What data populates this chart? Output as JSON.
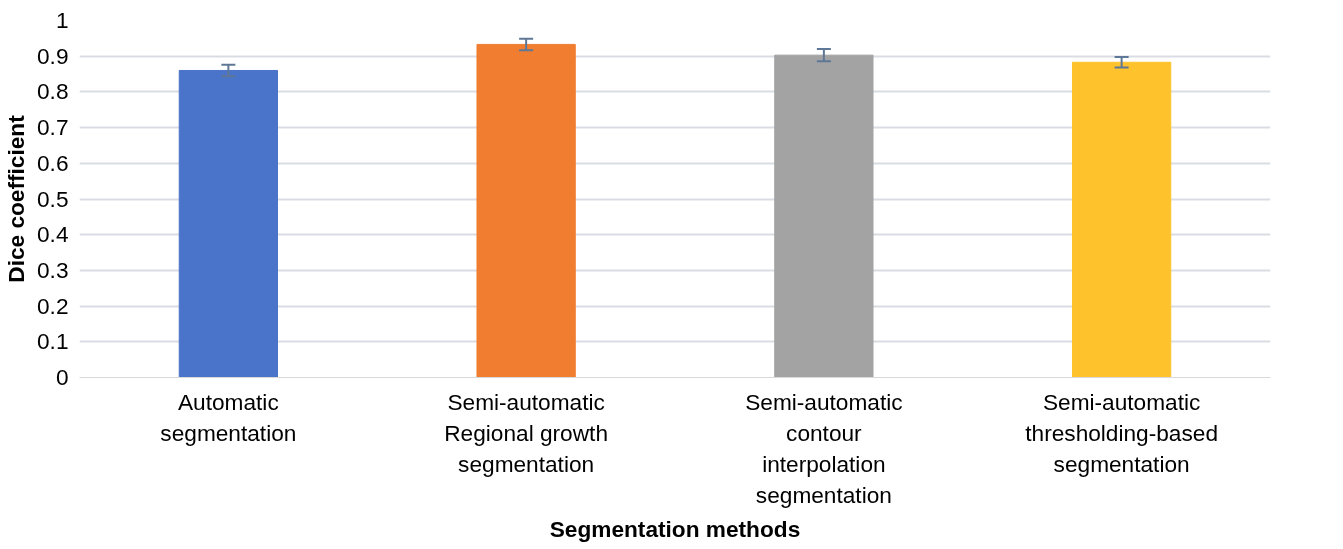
{
  "chart_data": {
    "type": "bar",
    "xlabel": "Segmentation methods",
    "ylabel": "Dice coefficient",
    "categories": [
      "Automatic segmentation",
      "Semi-automatic Regional growth segmentation",
      "Semi-automatic contour interpolation segmentation",
      "Semi-automatic thresholding-based segmentation"
    ],
    "values": [
      0.86,
      0.933,
      0.903,
      0.883
    ],
    "errors": [
      0.016,
      0.016,
      0.017,
      0.015
    ],
    "colors": [
      "#4a74c9",
      "#f07d30",
      "#a3a3a3",
      "#fec32c"
    ],
    "ylim": [
      0,
      1
    ],
    "yticks": [
      0,
      0.1,
      0.2,
      0.3,
      0.4,
      0.5,
      0.6,
      0.7,
      0.8,
      0.9,
      1
    ],
    "grid": "y"
  }
}
